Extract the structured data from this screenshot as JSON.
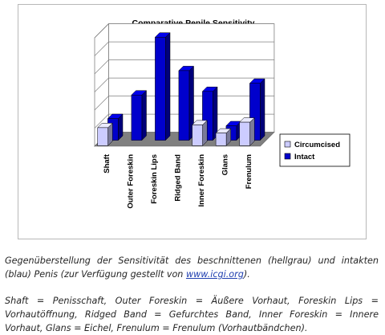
{
  "chart_data": {
    "type": "bar",
    "title": "Comparative Penile Sensitivity",
    "categories": [
      "Shaft",
      "Outer Foreskin",
      "Foreskin Lips",
      "Ridged Band",
      "Inner Foreskin",
      "Glans",
      "Frenulum"
    ],
    "series": [
      {
        "name": "Circumcised",
        "color": "#ccccff",
        "values": [
          2,
          0,
          0,
          0,
          2.3,
          1.4,
          2.6
        ]
      },
      {
        "name": "Intact",
        "color": "#0000cc",
        "values": [
          2.4,
          5.0,
          11.4,
          7.7,
          5.4,
          1.6,
          6.3
        ]
      }
    ],
    "ylim": [
      0,
      12
    ],
    "grid": true,
    "three_d": true,
    "legend_position": "right"
  },
  "caption": {
    "main_before_link": "Gegenüberstellung der Sensitivität des beschnittenen (hellgrau) und intakten (blau) Penis (zur Verfügung gestellt von ",
    "link_text": "www.icgi.org",
    "main_after_link": ").",
    "legend_text": "Shaft = Penisschaft, Outer Foreskin = Äußere Vorhaut, Foreskin Lips = Vorhautöffnung, Ridged Band = Gefurchtes Band, Inner Foreskin = Innere Vorhaut, Glans = Eichel, Frenulum = Frenulum (Vorhautbändchen)."
  }
}
